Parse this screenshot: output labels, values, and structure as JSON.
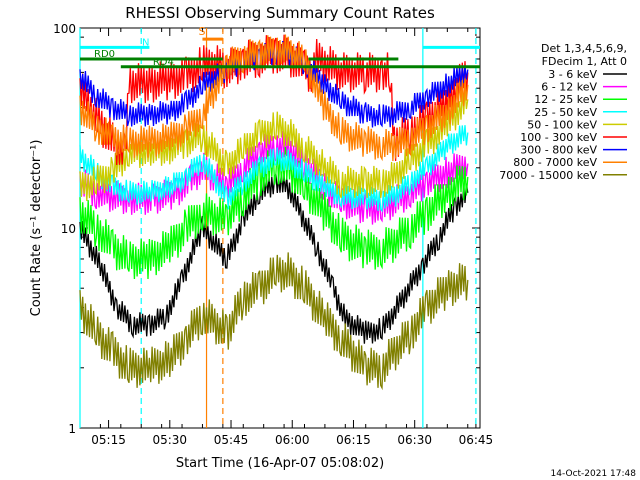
{
  "chart_data": {
    "type": "line",
    "title": "RHESSI Observing Summary Count Rates",
    "xlabel": "Start Time (16-Apr-07 05:08:02)",
    "ylabel": "Count Rate (s⁻¹ detector⁻¹)",
    "y_scale": "log",
    "ylim": [
      1,
      100
    ],
    "y_ticks": [
      {
        "v": 1,
        "label": "1"
      },
      {
        "v": 10,
        "label": "10"
      },
      {
        "v": 100,
        "label": "100"
      }
    ],
    "xlim_min": [
      0,
      98
    ],
    "x_ticks": [
      {
        "t": 7,
        "label": "05:15"
      },
      {
        "t": 22,
        "label": "05:30"
      },
      {
        "t": 37,
        "label": "05:45"
      },
      {
        "t": 52,
        "label": "06:00"
      },
      {
        "t": 67,
        "label": "06:15"
      },
      {
        "t": 82,
        "label": "06:30"
      },
      {
        "t": 97,
        "label": "06:45"
      }
    ],
    "legend_header": [
      "Det 1,3,4,5,6,9,",
      "FDecim 1, Att 0"
    ],
    "timestamp": "14-Oct-2021 17:48",
    "series": [
      {
        "name": "3 - 6 keV",
        "color": "#000000",
        "values": [
          [
            0,
            10
          ],
          [
            5,
            6.5
          ],
          [
            9,
            4
          ],
          [
            13,
            3.3
          ],
          [
            17,
            3.3
          ],
          [
            21,
            3.6
          ],
          [
            25,
            5.5
          ],
          [
            28,
            8
          ],
          [
            30,
            10
          ],
          [
            36,
            7
          ],
          [
            40,
            11
          ],
          [
            44,
            15
          ],
          [
            48,
            17
          ],
          [
            51,
            16
          ],
          [
            54,
            12
          ],
          [
            58,
            8
          ],
          [
            62,
            5
          ],
          [
            65,
            3.5
          ],
          [
            70,
            3
          ],
          [
            74,
            3.1
          ],
          [
            77,
            3.8
          ],
          [
            80,
            4.8
          ],
          [
            84,
            6.5
          ],
          [
            88,
            9
          ],
          [
            92,
            13
          ],
          [
            95,
            15
          ]
        ]
      },
      {
        "name": "6 - 12 keV",
        "color": "#ff00ff",
        "values": [
          [
            0,
            17
          ],
          [
            4,
            15
          ],
          [
            7,
            14.5
          ],
          [
            12,
            14
          ],
          [
            18,
            14
          ],
          [
            23,
            15
          ],
          [
            27,
            17
          ],
          [
            30,
            20
          ],
          [
            36,
            16
          ],
          [
            40,
            20
          ],
          [
            44,
            24
          ],
          [
            48,
            26
          ],
          [
            51,
            25
          ],
          [
            55,
            21
          ],
          [
            60,
            16
          ],
          [
            64,
            13.5
          ],
          [
            70,
            12.5
          ],
          [
            74,
            12.5
          ],
          [
            77,
            13.5
          ],
          [
            81,
            15
          ],
          [
            85,
            17
          ],
          [
            90,
            19
          ],
          [
            95,
            21
          ]
        ]
      },
      {
        "name": "12 - 25 keV",
        "color": "#00ff00",
        "values": [
          [
            0,
            12
          ],
          [
            4,
            10
          ],
          [
            8,
            8
          ],
          [
            12,
            7
          ],
          [
            17,
            7
          ],
          [
            22,
            8
          ],
          [
            26,
            10
          ],
          [
            30,
            12
          ],
          [
            36,
            11
          ],
          [
            40,
            14.5
          ],
          [
            44,
            18
          ],
          [
            48,
            21
          ],
          [
            51,
            20
          ],
          [
            55,
            16
          ],
          [
            60,
            12
          ],
          [
            64,
            9
          ],
          [
            70,
            7.8
          ],
          [
            74,
            7.8
          ],
          [
            77,
            8.5
          ],
          [
            81,
            10
          ],
          [
            85,
            12
          ],
          [
            90,
            15
          ],
          [
            95,
            18
          ]
        ]
      },
      {
        "name": "25 - 50 keV",
        "color": "#00ffff",
        "values": [
          [
            0,
            23
          ],
          [
            4,
            19
          ],
          [
            8,
            16
          ],
          [
            12,
            15
          ],
          [
            17,
            15
          ],
          [
            22,
            16
          ],
          [
            26,
            18
          ],
          [
            30,
            22
          ],
          [
            36,
            14
          ],
          [
            40,
            17
          ],
          [
            44,
            20
          ],
          [
            48,
            22.5
          ],
          [
            51,
            21.5
          ],
          [
            55,
            19
          ],
          [
            60,
            16
          ],
          [
            64,
            14.5
          ],
          [
            70,
            14
          ],
          [
            74,
            14
          ],
          [
            77,
            14.5
          ],
          [
            81,
            17
          ],
          [
            85,
            20
          ],
          [
            90,
            26
          ],
          [
            95,
            30
          ]
        ]
      },
      {
        "name": "50 - 100 keV",
        "color": "#cccc00",
        "values": [
          [
            0,
            16
          ],
          [
            4,
            17
          ],
          [
            8,
            19
          ],
          [
            12,
            24
          ],
          [
            17,
            24
          ],
          [
            22,
            25
          ],
          [
            26,
            27
          ],
          [
            30,
            29
          ],
          [
            36,
            20
          ],
          [
            40,
            25
          ],
          [
            44,
            29
          ],
          [
            48,
            32
          ],
          [
            51,
            30
          ],
          [
            55,
            25
          ],
          [
            60,
            20
          ],
          [
            64,
            17
          ],
          [
            70,
            17
          ],
          [
            74,
            17
          ],
          [
            77,
            18
          ],
          [
            81,
            22
          ],
          [
            85,
            26
          ],
          [
            90,
            33
          ],
          [
            95,
            44
          ]
        ]
      },
      {
        "name": "100 - 300 keV",
        "color": "#ff0000",
        "values": [
          [
            0,
            50
          ],
          [
            3,
            38
          ],
          [
            6,
            31
          ],
          [
            9,
            26
          ],
          [
            11,
            24
          ],
          [
            12,
            53
          ],
          [
            17,
            53
          ],
          [
            22,
            55
          ],
          [
            26,
            57
          ],
          [
            30,
            65
          ],
          [
            33,
            66
          ],
          [
            36,
            62
          ],
          [
            40,
            68
          ],
          [
            44,
            72
          ],
          [
            48,
            75
          ],
          [
            51,
            73
          ],
          [
            55,
            63
          ],
          [
            57,
            58
          ],
          [
            58,
            70
          ],
          [
            61,
            65
          ],
          [
            64,
            60
          ],
          [
            70,
            60
          ],
          [
            74,
            60
          ],
          [
            76,
            60
          ],
          [
            77,
            27
          ],
          [
            81,
            30
          ],
          [
            85,
            35
          ],
          [
            90,
            43
          ],
          [
            95,
            60
          ]
        ]
      },
      {
        "name": "300 - 800 keV",
        "color": "#0000ff",
        "values": [
          [
            0,
            57
          ],
          [
            4,
            46
          ],
          [
            8,
            40
          ],
          [
            12,
            37
          ],
          [
            17,
            37
          ],
          [
            22,
            38
          ],
          [
            26,
            42
          ],
          [
            30,
            52
          ],
          [
            36,
            62
          ],
          [
            40,
            68
          ],
          [
            44,
            72
          ],
          [
            48,
            76
          ],
          [
            51,
            74
          ],
          [
            55,
            67
          ],
          [
            60,
            52
          ],
          [
            64,
            43
          ],
          [
            70,
            37
          ],
          [
            74,
            36
          ],
          [
            77,
            37
          ],
          [
            81,
            40
          ],
          [
            85,
            45
          ],
          [
            90,
            52
          ],
          [
            95,
            62
          ]
        ]
      },
      {
        "name": "800 - 7000 keV",
        "color": "#ff8000",
        "values": [
          [
            0,
            40
          ],
          [
            4,
            32
          ],
          [
            8,
            28
          ],
          [
            12,
            27
          ],
          [
            17,
            27
          ],
          [
            22,
            28
          ],
          [
            26,
            31
          ],
          [
            30,
            37
          ],
          [
            36,
            65
          ],
          [
            40,
            72
          ],
          [
            44,
            75
          ],
          [
            48,
            78
          ],
          [
            51,
            77
          ],
          [
            55,
            69
          ],
          [
            60,
            40
          ],
          [
            64,
            30
          ],
          [
            70,
            27
          ],
          [
            74,
            26
          ],
          [
            77,
            26
          ],
          [
            81,
            28
          ],
          [
            85,
            32
          ],
          [
            90,
            38
          ],
          [
            95,
            52
          ]
        ]
      },
      {
        "name": "7000 - 15000 keV",
        "color": "#808000",
        "values": [
          [
            0,
            4
          ],
          [
            4,
            3
          ],
          [
            8,
            2.4
          ],
          [
            12,
            2
          ],
          [
            17,
            2
          ],
          [
            22,
            2.2
          ],
          [
            26,
            2.8
          ],
          [
            30,
            3.7
          ],
          [
            36,
            3
          ],
          [
            40,
            4.5
          ],
          [
            44,
            5
          ],
          [
            48,
            6
          ],
          [
            51,
            6
          ],
          [
            55,
            5
          ],
          [
            60,
            3.5
          ],
          [
            64,
            2.8
          ],
          [
            70,
            2
          ],
          [
            74,
            2
          ],
          [
            77,
            2.4
          ],
          [
            81,
            3
          ],
          [
            85,
            4
          ],
          [
            90,
            5
          ],
          [
            95,
            5.5
          ]
        ]
      }
    ],
    "status_bars": [
      {
        "label": "N",
        "color": "#00ffff",
        "y": 80,
        "segments": [
          [
            0,
            17
          ],
          [
            84,
            98
          ]
        ]
      },
      {
        "label": "RD0",
        "color": "#008000",
        "y": 70,
        "segments": [
          [
            0,
            35
          ],
          [
            56,
            78
          ]
        ]
      },
      {
        "label": "RD4",
        "color": "#008000",
        "y": 64,
        "segments": [
          [
            10,
            35
          ],
          [
            34,
            98
          ]
        ]
      },
      {
        "label": "S",
        "color": "#ff8000",
        "y": 88,
        "segments": [
          [
            30,
            35
          ]
        ]
      }
    ],
    "vertical_lines": [
      {
        "t": 0,
        "color": "#00ffff",
        "style": "solid"
      },
      {
        "t": 15,
        "color": "#00ffff",
        "style": "dashed"
      },
      {
        "t": 31,
        "color": "#ff8000",
        "style": "solid"
      },
      {
        "t": 35,
        "color": "#ff8000",
        "style": "dashed"
      },
      {
        "t": 84,
        "color": "#00ffff",
        "style": "solid"
      },
      {
        "t": 97,
        "color": "#00ffff",
        "style": "dashed"
      }
    ]
  }
}
